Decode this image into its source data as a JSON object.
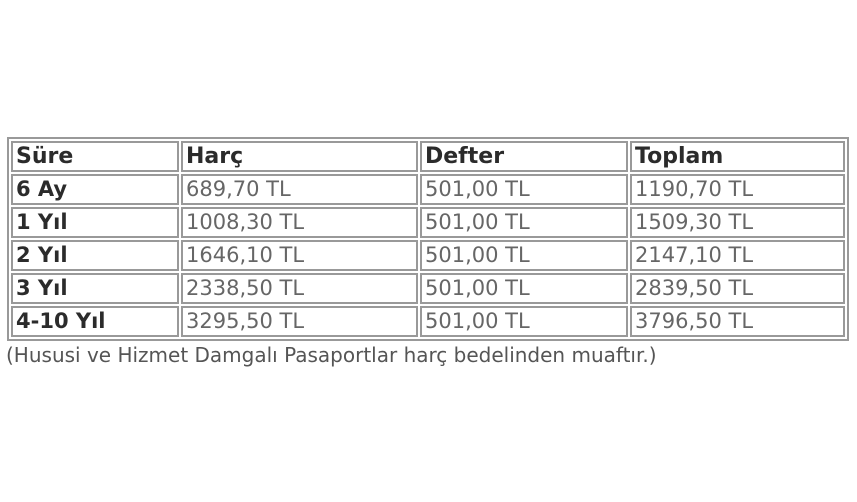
{
  "table": {
    "headers": [
      "Süre",
      "Harç",
      "Defter",
      "Toplam"
    ],
    "rows": [
      [
        "6 Ay",
        "689,70 TL",
        "501,00 TL",
        "1190,70 TL"
      ],
      [
        "1 Yıl",
        "1008,30 TL",
        "501,00 TL",
        "1509,30 TL"
      ],
      [
        "2 Yıl",
        "1646,10 TL",
        "501,00 TL",
        "2147,10 TL"
      ],
      [
        "3 Yıl",
        "2338,50 TL",
        "501,00 TL",
        "2839,50 TL"
      ],
      [
        "4-10 Yıl",
        "3295,50 TL",
        "501,00 TL",
        "3796,50 TL"
      ]
    ]
  },
  "note": "(Hususi ve Hizmet Damgalı Pasaportlar harç bedelinden muaftır.)"
}
